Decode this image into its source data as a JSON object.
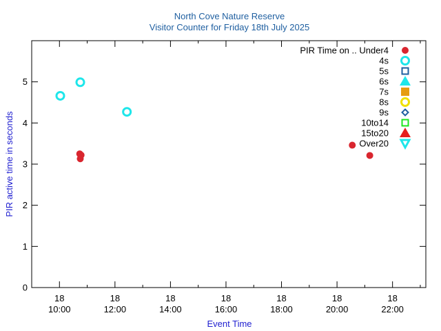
{
  "chart_data": {
    "type": "scatter",
    "title": "North Cove Nature Reserve",
    "subtitle": "Visitor Counter for Friday 18th July 2025",
    "xlabel": "Event Time",
    "ylabel": "PIR active time in seconds",
    "x_ticks": [
      {
        "day": "18",
        "time": "10:00",
        "hour": 10
      },
      {
        "day": "18",
        "time": "12:00",
        "hour": 12
      },
      {
        "day": "18",
        "time": "14:00",
        "hour": 14
      },
      {
        "day": "18",
        "time": "16:00",
        "hour": 16
      },
      {
        "day": "18",
        "time": "18:00",
        "hour": 18
      },
      {
        "day": "18",
        "time": "20:00",
        "hour": 20
      },
      {
        "day": "18",
        "time": "22:00",
        "hour": 22
      }
    ],
    "xlim_hours": [
      9.0,
      23.2
    ],
    "y_ticks": [
      0,
      1,
      2,
      3,
      4,
      5
    ],
    "ylim": [
      0,
      6
    ],
    "legend_placement": "top-right",
    "legend_title": "PIR Time on ..",
    "series": [
      {
        "name": "Under4",
        "marker": "filled-circle",
        "color": "#d9262f",
        "points": [
          [
            10.73,
            3.25
          ],
          [
            10.78,
            3.22
          ],
          [
            10.75,
            3.13
          ],
          [
            20.55,
            3.46
          ],
          [
            21.18,
            3.21
          ]
        ]
      },
      {
        "name": "4s",
        "marker": "open-circle",
        "color": "#1ee6ea",
        "points": [
          [
            10.03,
            4.66
          ],
          [
            10.75,
            4.99
          ],
          [
            12.43,
            4.27
          ]
        ]
      },
      {
        "name": "5s",
        "marker": "open-square",
        "color": "#1f5fa0",
        "points": []
      },
      {
        "name": "6s",
        "marker": "filled-triangle-up",
        "color": "#1ee6ea",
        "points": []
      },
      {
        "name": "7s",
        "marker": "filled-square",
        "color": "#e69c12",
        "points": []
      },
      {
        "name": "8s",
        "marker": "open-circle",
        "color": "#f0e000",
        "points": []
      },
      {
        "name": "9s",
        "marker": "open-diamond",
        "color": "#1f5fa0",
        "points": []
      },
      {
        "name": "10to14",
        "marker": "open-square",
        "color": "#1ee61e",
        "points": []
      },
      {
        "name": "15to20",
        "marker": "filled-triangle-up",
        "color": "#e61e1e",
        "points": []
      },
      {
        "name": "Over20",
        "marker": "open-triangle-down",
        "color": "#1ee6ea",
        "points": []
      }
    ]
  }
}
